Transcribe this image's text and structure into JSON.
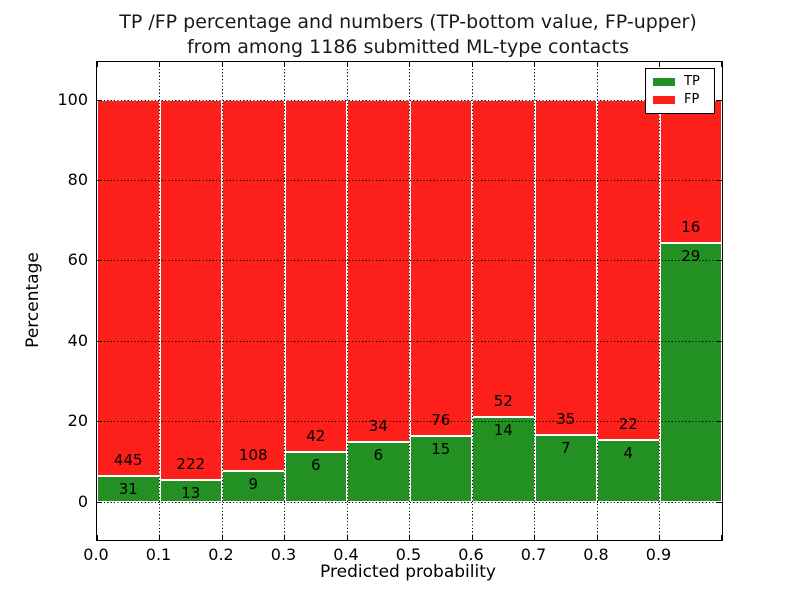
{
  "figure": {
    "title_line1": "TP /FP percentage and numbers (TP-bottom value, FP-upper)",
    "title_line2": "from among 1186 submitted ML-type contacts"
  },
  "chart_data": {
    "type": "bar",
    "stacked": true,
    "normalized": "each bin stacked to 100%",
    "title": "TP /FP percentage and numbers (TP-bottom value, FP-upper) from among 1186 submitted ML-type contacts",
    "xlabel": "Predicted probability",
    "ylabel": "Percentage",
    "x_tick_labels": [
      "0.0",
      "0.1",
      "0.2",
      "0.3",
      "0.4",
      "0.5",
      "0.6",
      "0.7",
      "0.8",
      "0.9"
    ],
    "y_ticks": [
      0,
      20,
      40,
      60,
      80,
      100
    ],
    "xlim": [
      0.0,
      1.0
    ],
    "ylim_percent": [
      -9.5,
      109.5
    ],
    "bin_width": 0.1,
    "grid": {
      "style": "dotted",
      "color": "#000000",
      "drawn_over_bars": true
    },
    "legend": {
      "position": "upper right"
    },
    "series": [
      {
        "name": "TP",
        "color": "#239023",
        "position": "bottom",
        "values": [
          31,
          13,
          9,
          6,
          6,
          15,
          14,
          7,
          4,
          29
        ]
      },
      {
        "name": "FP",
        "color": "#fd1f1a",
        "position": "top",
        "values": [
          445,
          222,
          108,
          42,
          34,
          76,
          52,
          35,
          22,
          16
        ]
      }
    ],
    "tp_percent_of_bin": [
      6.5,
      5.5,
      7.7,
      12.5,
      15.0,
      16.5,
      21.2,
      16.7,
      15.4,
      64.4
    ],
    "total_contacts": 1186
  }
}
